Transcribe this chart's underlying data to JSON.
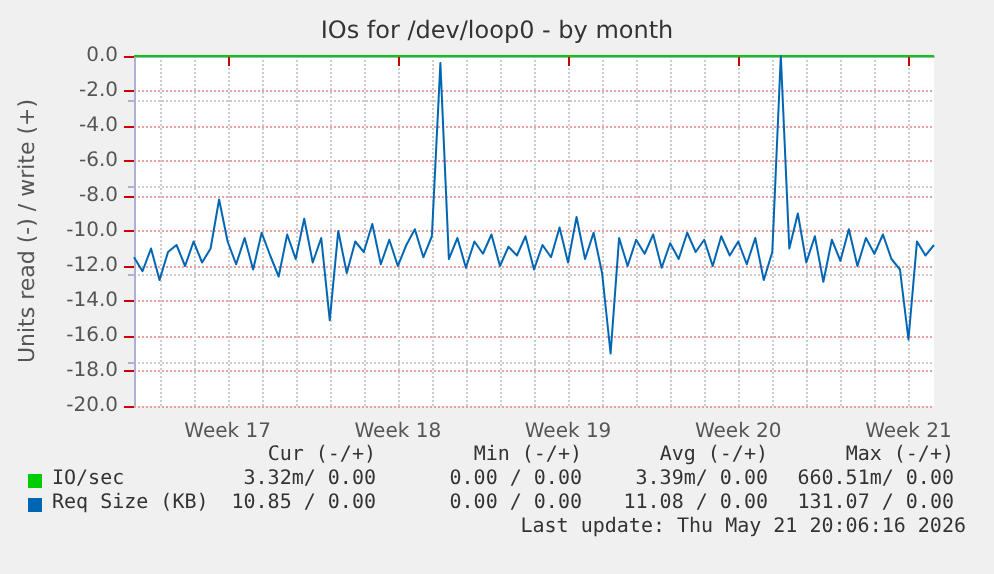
{
  "chart_data": {
    "type": "line",
    "title": "IOs for /dev/loop0 - by month",
    "ylabel": "Units read (-) / write (+)",
    "categories": [
      null,
      null,
      null,
      null,
      null,
      null,
      null,
      null,
      null,
      null,
      null,
      "Week 17",
      null,
      null,
      null,
      null,
      null,
      null,
      null,
      null,
      null,
      null,
      null,
      null,
      null,
      null,
      null,
      null,
      null,
      null,
      null,
      "Week 18",
      null,
      null,
      null,
      null,
      null,
      null,
      null,
      null,
      null,
      null,
      null,
      null,
      null,
      null,
      null,
      null,
      null,
      null,
      null,
      "Week 19",
      null,
      null,
      null,
      null,
      null,
      null,
      null,
      null,
      null,
      null,
      null,
      null,
      null,
      null,
      null,
      null,
      null,
      null,
      null,
      "Week 20",
      null,
      null,
      null,
      null,
      null,
      null,
      null,
      null,
      null,
      null,
      null,
      null,
      null,
      null,
      null,
      null,
      null,
      null,
      null,
      "Week 21",
      null,
      null,
      null
    ],
    "ylim": [
      -20,
      0
    ],
    "yticks": [
      {
        "value": -20,
        "label": "-20.0"
      },
      {
        "value": -18,
        "label": "-18.0"
      },
      {
        "value": -16,
        "label": "-16.0"
      },
      {
        "value": -14,
        "label": "-14.0"
      },
      {
        "value": -12,
        "label": "-12.0"
      },
      {
        "value": -10,
        "label": "-10.0"
      },
      {
        "value": -8,
        "label": "-8.0"
      },
      {
        "value": -6,
        "label": "-6.0"
      },
      {
        "value": -4,
        "label": "-4.0"
      },
      {
        "value": -2,
        "label": "-2.0"
      },
      {
        "value": 0,
        "label": "0.0"
      }
    ],
    "grid": true,
    "legend": "bottom",
    "marker": "none",
    "line_style": "solid",
    "series": [
      {
        "name": "IO/sec",
        "color": "#00cc00",
        "values": [
          0,
          0,
          0,
          0,
          0,
          0,
          0,
          0,
          0,
          0,
          0,
          0,
          0,
          0,
          0,
          0,
          0,
          0,
          0,
          0,
          0,
          0,
          0,
          0,
          0,
          0,
          0,
          0,
          0,
          0,
          0,
          0,
          0,
          0,
          0,
          0,
          0,
          0,
          0,
          0,
          0,
          0,
          0,
          0,
          0,
          0,
          0,
          0,
          0,
          0,
          0,
          0,
          0,
          0,
          0,
          0,
          0,
          0,
          0,
          0,
          0,
          0,
          0,
          0,
          0,
          0,
          0,
          0,
          0,
          0,
          0,
          0,
          0,
          0,
          0,
          0,
          0,
          0,
          0,
          0,
          0,
          0,
          0,
          0,
          0,
          0,
          0,
          0,
          0,
          0,
          0,
          0,
          0,
          0,
          0
        ]
      },
      {
        "name": "Req Size (KB)",
        "color": "#0066b3",
        "values": [
          -11.5,
          -12.3,
          -11.0,
          -12.8,
          -11.2,
          -10.8,
          -12.0,
          -10.6,
          -11.8,
          -11.0,
          -8.2,
          -10.6,
          -11.9,
          -10.4,
          -12.2,
          -10.1,
          -11.4,
          -12.6,
          -10.2,
          -11.6,
          -9.3,
          -11.8,
          -10.4,
          -15.1,
          -10.0,
          -12.4,
          -10.6,
          -11.2,
          -9.6,
          -11.9,
          -10.5,
          -12.0,
          -10.8,
          -9.9,
          -11.5,
          -10.3,
          -0.4,
          -11.6,
          -10.4,
          -12.1,
          -10.6,
          -11.3,
          -10.2,
          -12.0,
          -10.9,
          -11.4,
          -10.3,
          -12.2,
          -10.8,
          -11.5,
          -9.8,
          -11.8,
          -9.2,
          -11.6,
          -10.1,
          -12.4,
          -17.0,
          -10.4,
          -12.0,
          -10.5,
          -11.3,
          -10.2,
          -12.1,
          -10.7,
          -11.6,
          -10.1,
          -11.2,
          -10.5,
          -12.0,
          -10.3,
          -11.4,
          -10.6,
          -11.9,
          -10.4,
          -12.8,
          -11.2,
          0.0,
          -11.0,
          -9.0,
          -11.8,
          -10.3,
          -12.9,
          -10.5,
          -11.7,
          -9.9,
          -12.0,
          -10.4,
          -11.3,
          -10.2,
          -11.6,
          -12.2,
          -16.2,
          -10.6,
          -11.4,
          -10.8
        ]
      }
    ],
    "annotations": [
      "Cur (-/+)",
      "Min (-/+)",
      "Avg (-/+)",
      "Max (-/+)",
      "3.32m/ 0.00",
      "0.00 / 0.00",
      "3.39m/ 0.00",
      "660.51m/ 0.00",
      "10.85 / 0.00",
      "0.00 / 0.00",
      "11.08 / 0.00",
      "131.07 / 0.00",
      "Last update: Thu May 21 20:06:16 2026"
    ]
  }
}
